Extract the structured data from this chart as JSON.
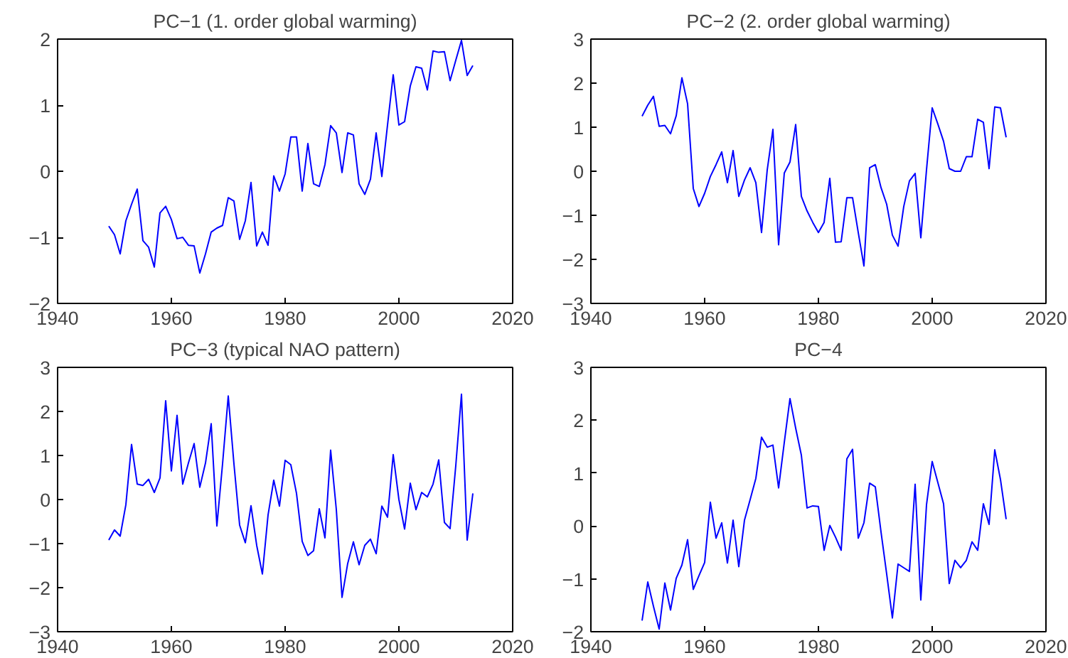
{
  "chart_data": [
    {
      "type": "line",
      "title": "PC−1 (1. order global warming)",
      "xlim": [
        1940,
        2020
      ],
      "xticks": [
        1940,
        1960,
        1980,
        2000,
        2020
      ],
      "ylim": [
        -2,
        2
      ],
      "yticks": [
        -2,
        -1,
        0,
        1,
        2
      ],
      "grid": false,
      "marker": "none",
      "line_style": "solid",
      "x": [
        1949,
        1950,
        1951,
        1952,
        1953,
        1954,
        1955,
        1956,
        1957,
        1958,
        1959,
        1960,
        1961,
        1962,
        1963,
        1964,
        1965,
        1966,
        1967,
        1968,
        1969,
        1970,
        1971,
        1972,
        1973,
        1974,
        1975,
        1976,
        1977,
        1978,
        1979,
        1980,
        1981,
        1982,
        1983,
        1984,
        1985,
        1986,
        1987,
        1988,
        1989,
        1990,
        1991,
        1992,
        1993,
        1994,
        1995,
        1996,
        1997,
        1998,
        1999,
        2000,
        2001,
        2002,
        2003,
        2004,
        2005,
        2006,
        2007,
        2008,
        2009,
        2010,
        2011,
        2012,
        2013
      ],
      "series": [
        {
          "color": "#0000ff",
          "values": [
            -0.83,
            -0.96,
            -1.25,
            -0.75,
            -0.5,
            -0.27,
            -1.05,
            -1.15,
            -1.45,
            -0.63,
            -0.53,
            -0.73,
            -1.02,
            -1.0,
            -1.12,
            -1.13,
            -1.54,
            -1.25,
            -0.92,
            -0.86,
            -0.82,
            -0.4,
            -0.45,
            -1.03,
            -0.75,
            -0.17,
            -1.13,
            -0.92,
            -1.12,
            -0.07,
            -0.3,
            -0.04,
            0.52,
            0.52,
            -0.3,
            0.42,
            -0.19,
            -0.23,
            0.1,
            0.69,
            0.58,
            -0.02,
            0.58,
            0.55,
            -0.19,
            -0.35,
            -0.12,
            0.58,
            -0.08,
            0.7,
            1.46,
            0.7,
            0.75,
            1.29,
            1.58,
            1.56,
            1.23,
            1.82,
            1.8,
            1.81,
            1.37,
            1.68,
            1.98,
            1.45,
            1.6
          ]
        }
      ]
    },
    {
      "type": "line",
      "title": "PC−2 (2. order global warming)",
      "xlim": [
        1940,
        2020
      ],
      "xticks": [
        1940,
        1960,
        1980,
        2000,
        2020
      ],
      "ylim": [
        -3,
        3
      ],
      "yticks": [
        -3,
        -2,
        -1,
        0,
        1,
        2,
        3
      ],
      "grid": false,
      "marker": "none",
      "line_style": "solid",
      "x": [
        1949,
        1950,
        1951,
        1952,
        1953,
        1954,
        1955,
        1956,
        1957,
        1958,
        1959,
        1960,
        1961,
        1962,
        1963,
        1964,
        1965,
        1966,
        1967,
        1968,
        1969,
        1970,
        1971,
        1972,
        1973,
        1974,
        1975,
        1976,
        1977,
        1978,
        1979,
        1980,
        1981,
        1982,
        1983,
        1984,
        1985,
        1986,
        1987,
        1988,
        1989,
        1990,
        1991,
        1992,
        1993,
        1994,
        1995,
        1996,
        1997,
        1998,
        1999,
        2000,
        2001,
        2002,
        2003,
        2004,
        2005,
        2006,
        2007,
        2008,
        2009,
        2010,
        2011,
        2012,
        2013
      ],
      "series": [
        {
          "color": "#0000ff",
          "values": [
            1.25,
            1.5,
            1.7,
            1.02,
            1.04,
            0.85,
            1.26,
            2.12,
            1.53,
            -0.39,
            -0.8,
            -0.5,
            -0.12,
            0.15,
            0.44,
            -0.26,
            0.47,
            -0.57,
            -0.2,
            0.08,
            -0.26,
            -1.39,
            0.03,
            0.95,
            -1.67,
            -0.04,
            0.21,
            1.06,
            -0.57,
            -0.9,
            -1.16,
            -1.39,
            -1.16,
            -0.16,
            -1.61,
            -1.6,
            -0.6,
            -0.6,
            -1.39,
            -2.15,
            0.08,
            0.15,
            -0.37,
            -0.75,
            -1.45,
            -1.7,
            -0.8,
            -0.22,
            -0.05,
            -1.51,
            0.03,
            1.44,
            1.07,
            0.68,
            0.06,
            0.0,
            0.0,
            0.33,
            0.33,
            1.18,
            1.11,
            0.06,
            1.46,
            1.44,
            0.77
          ]
        }
      ]
    },
    {
      "type": "line",
      "title": "PC−3 (typical NAO pattern)",
      "xlim": [
        1940,
        2020
      ],
      "xticks": [
        1940,
        1960,
        1980,
        2000,
        2020
      ],
      "ylim": [
        -3,
        3
      ],
      "yticks": [
        -3,
        -2,
        -1,
        0,
        1,
        2,
        3
      ],
      "grid": false,
      "marker": "none",
      "line_style": "solid",
      "x": [
        1949,
        1950,
        1951,
        1952,
        1953,
        1954,
        1955,
        1956,
        1957,
        1958,
        1959,
        1960,
        1961,
        1962,
        1963,
        1964,
        1965,
        1966,
        1967,
        1968,
        1969,
        1970,
        1971,
        1972,
        1973,
        1974,
        1975,
        1976,
        1977,
        1978,
        1979,
        1980,
        1981,
        1982,
        1983,
        1984,
        1985,
        1986,
        1987,
        1988,
        1989,
        1990,
        1991,
        1992,
        1993,
        1994,
        1995,
        1996,
        1997,
        1998,
        1999,
        2000,
        2001,
        2002,
        2003,
        2004,
        2005,
        2006,
        2007,
        2008,
        2009,
        2010,
        2011,
        2012,
        2013
      ],
      "series": [
        {
          "color": "#0000ff",
          "values": [
            -0.92,
            -0.69,
            -0.83,
            -0.12,
            1.25,
            0.35,
            0.32,
            0.46,
            0.16,
            0.49,
            2.24,
            0.65,
            1.91,
            0.35,
            0.83,
            1.27,
            0.28,
            0.83,
            1.72,
            -0.6,
            0.81,
            2.35,
            0.81,
            -0.58,
            -0.98,
            -0.14,
            -1.04,
            -1.69,
            -0.35,
            0.44,
            -0.15,
            0.89,
            0.79,
            0.14,
            -0.95,
            -1.27,
            -1.16,
            -0.21,
            -0.87,
            1.12,
            -0.23,
            -2.22,
            -1.45,
            -0.96,
            -1.48,
            -1.04,
            -0.9,
            -1.23,
            -0.15,
            -0.4,
            1.02,
            0.0,
            -0.67,
            0.37,
            -0.23,
            0.16,
            0.06,
            0.35,
            0.9,
            -0.52,
            -0.66,
            0.77,
            2.39,
            -0.92,
            0.14
          ]
        }
      ]
    },
    {
      "type": "line",
      "title": "PC−4",
      "xlim": [
        1940,
        2020
      ],
      "xticks": [
        1940,
        1960,
        1980,
        2000,
        2020
      ],
      "ylim": [
        -2,
        3
      ],
      "yticks": [
        -2,
        -1,
        0,
        1,
        2,
        3
      ],
      "grid": false,
      "marker": "none",
      "line_style": "solid",
      "x": [
        1949,
        1950,
        1951,
        1952,
        1953,
        1954,
        1955,
        1956,
        1957,
        1958,
        1959,
        1960,
        1961,
        1962,
        1963,
        1964,
        1965,
        1966,
        1967,
        1968,
        1969,
        1970,
        1971,
        1972,
        1973,
        1974,
        1975,
        1976,
        1977,
        1978,
        1979,
        1980,
        1981,
        1982,
        1983,
        1984,
        1985,
        1986,
        1987,
        1988,
        1989,
        1990,
        1991,
        1992,
        1993,
        1994,
        1995,
        1996,
        1997,
        1998,
        1999,
        2000,
        2001,
        2002,
        2003,
        2004,
        2005,
        2006,
        2007,
        2008,
        2009,
        2010,
        2011,
        2012,
        2013
      ],
      "series": [
        {
          "color": "#0000ff",
          "values": [
            -1.79,
            -1.06,
            -1.52,
            -1.95,
            -1.08,
            -1.59,
            -0.99,
            -0.74,
            -0.26,
            -1.2,
            -0.94,
            -0.69,
            0.45,
            -0.23,
            0.06,
            -0.7,
            0.11,
            -0.77,
            0.11,
            0.5,
            0.9,
            1.68,
            1.49,
            1.53,
            0.72,
            1.58,
            2.41,
            1.85,
            1.34,
            0.34,
            0.38,
            0.37,
            -0.46,
            0.01,
            -0.21,
            -0.46,
            1.27,
            1.45,
            -0.23,
            0.06,
            0.81,
            0.74,
            -0.11,
            -0.91,
            -1.74,
            -0.72,
            -0.79,
            -0.86,
            0.79,
            -1.4,
            0.4,
            1.22,
            0.82,
            0.42,
            -1.09,
            -0.65,
            -0.79,
            -0.65,
            -0.3,
            -0.46,
            0.42,
            0.03,
            1.44,
            0.88,
            0.13
          ]
        }
      ]
    }
  ]
}
